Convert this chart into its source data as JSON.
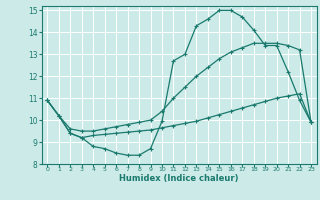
{
  "xlabel": "Humidex (Indice chaleur)",
  "bg_color": "#cceae8",
  "grid_color": "#ffffff",
  "line_color": "#1a7a6e",
  "xlim": [
    -0.5,
    23.5
  ],
  "ylim": [
    8,
    15.2
  ],
  "xticks": [
    0,
    1,
    2,
    3,
    4,
    5,
    6,
    7,
    8,
    9,
    10,
    11,
    12,
    13,
    14,
    15,
    16,
    17,
    18,
    19,
    20,
    21,
    22,
    23
  ],
  "yticks": [
    8,
    9,
    10,
    11,
    12,
    13,
    14,
    15
  ],
  "line1_x": [
    0,
    1,
    2,
    3,
    4,
    5,
    6,
    7,
    8,
    9,
    10,
    11,
    12,
    13,
    14,
    15,
    16,
    17,
    18,
    19,
    20,
    21,
    22,
    23
  ],
  "line1_y": [
    10.9,
    10.2,
    9.4,
    9.2,
    8.8,
    8.7,
    8.5,
    8.4,
    8.4,
    8.7,
    9.95,
    12.7,
    13.0,
    14.3,
    14.6,
    15.0,
    15.0,
    14.7,
    14.1,
    13.4,
    13.4,
    12.2,
    10.9,
    9.9
  ],
  "line2_x": [
    0,
    1,
    2,
    3,
    4,
    5,
    6,
    7,
    8,
    9,
    10,
    11,
    12,
    13,
    14,
    15,
    16,
    17,
    18,
    19,
    20,
    21,
    22,
    23
  ],
  "line2_y": [
    10.9,
    10.2,
    9.6,
    9.5,
    9.5,
    9.6,
    9.7,
    9.8,
    9.9,
    10.0,
    10.4,
    11.0,
    11.5,
    12.0,
    12.4,
    12.8,
    13.1,
    13.3,
    13.5,
    13.5,
    13.5,
    13.4,
    13.2,
    9.9
  ],
  "line3_x": [
    0,
    1,
    2,
    3,
    4,
    5,
    6,
    7,
    8,
    9,
    10,
    11,
    12,
    13,
    14,
    15,
    16,
    17,
    18,
    19,
    20,
    21,
    22,
    23
  ],
  "line3_y": [
    10.9,
    10.2,
    9.4,
    9.2,
    9.3,
    9.35,
    9.4,
    9.45,
    9.5,
    9.55,
    9.65,
    9.75,
    9.85,
    9.95,
    10.1,
    10.25,
    10.4,
    10.55,
    10.7,
    10.85,
    11.0,
    11.1,
    11.2,
    9.9
  ]
}
